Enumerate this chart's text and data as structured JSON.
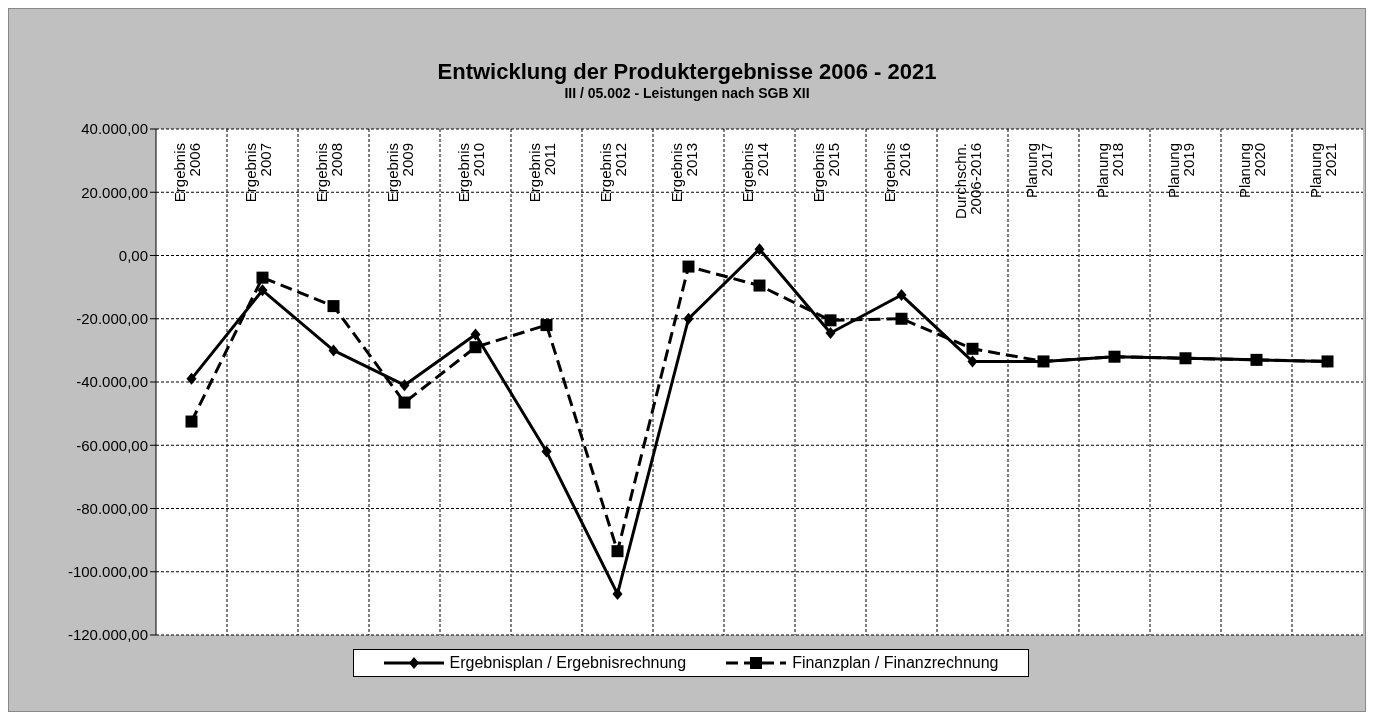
{
  "chart_data": {
    "type": "line",
    "title": "Entwicklung der Produktergebnisse 2006 - 2021",
    "subtitle": "III / 05.002 - Leistungen nach SGB XII",
    "categories": [
      "Ergebnis 2006",
      "Ergebnis 2007",
      "Ergebnis 2008",
      "Ergebnis 2009",
      "Ergebnis 2010",
      "Ergebnis 2011",
      "Ergebnis 2012",
      "Ergebnis 2013",
      "Ergebnis 2014",
      "Ergebnis 2015",
      "Ergebnis 2016",
      "Durchschn. 2006-2016",
      "Planung 2017",
      "Planung 2018",
      "Planung 2019",
      "Planung 2020",
      "Planung 2021"
    ],
    "series": [
      {
        "name": "Ergebnisplan / Ergebnisrechnung",
        "color": "#000000",
        "marker": "diamond",
        "line_style": "solid",
        "values": [
          -39000,
          -11000,
          -30000,
          -41000,
          -25000,
          -62000,
          -107000,
          -20000,
          2000,
          -24500,
          -12500,
          -33500,
          -33500,
          -32000,
          -32500,
          -33000,
          -33500
        ]
      },
      {
        "name": "Finanzplan / Finanzrechnung",
        "color": "#000000",
        "marker": "square",
        "line_style": "dashed",
        "values": [
          -52500,
          -7000,
          -16000,
          -46500,
          -29000,
          -22000,
          -93500,
          -3500,
          -9500,
          -20500,
          -20000,
          -29500,
          -33500,
          -32000,
          -32500,
          -33000,
          -33500
        ]
      }
    ],
    "ylim": [
      -120000,
      40000
    ],
    "yticks": [
      {
        "value": -120000,
        "label": "-120.000,00"
      },
      {
        "value": -100000,
        "label": "-100.000,00"
      },
      {
        "value": -80000,
        "label": "-80.000,00"
      },
      {
        "value": -60000,
        "label": "-60.000,00"
      },
      {
        "value": -40000,
        "label": "-40.000,00"
      },
      {
        "value": -20000,
        "label": "-20.000,00"
      },
      {
        "value": 0,
        "label": "0,00"
      },
      {
        "value": 20000,
        "label": "20.000,00"
      },
      {
        "value": 40000,
        "label": "40.000,00"
      }
    ],
    "grid": true,
    "legend": "bottom"
  }
}
